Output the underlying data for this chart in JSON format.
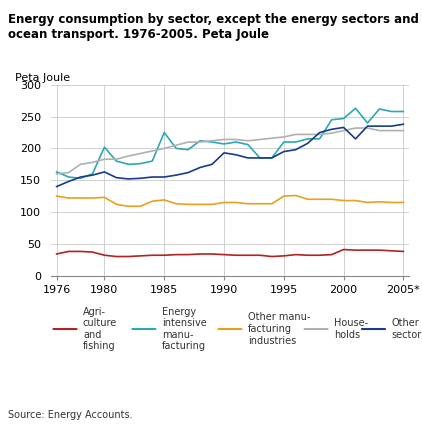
{
  "title": "Energy consumption by sector, except the energy sectors and\nocean transport. 1976-2005. Peta Joule",
  "ylabel": "Peta Joule",
  "source": "Source: Energy Accounts.",
  "xlim": [
    1976,
    2005
  ],
  "ylim": [
    0,
    300
  ],
  "yticks": [
    0,
    50,
    100,
    150,
    200,
    250,
    300
  ],
  "xticks": [
    1976,
    1980,
    1985,
    1990,
    1995,
    2000,
    "2005*"
  ],
  "xtick_vals": [
    1976,
    1980,
    1985,
    1990,
    1995,
    2000,
    2005
  ],
  "years": [
    1976,
    1977,
    1978,
    1979,
    1980,
    1981,
    1982,
    1983,
    1984,
    1985,
    1986,
    1987,
    1988,
    1989,
    1990,
    1991,
    1992,
    1993,
    1994,
    1995,
    1996,
    1997,
    1998,
    1999,
    2000,
    2001,
    2002,
    2003,
    2004,
    2005
  ],
  "series": {
    "Agriculture and fishing": {
      "color": "#b22222",
      "values": [
        34,
        38,
        38,
        37,
        32,
        30,
        30,
        31,
        32,
        32,
        33,
        33,
        34,
        34,
        33,
        32,
        32,
        32,
        30,
        31,
        33,
        32,
        32,
        33,
        41,
        40,
        40,
        40,
        39,
        38
      ]
    },
    "Energy intensive manufacturing": {
      "color": "#2ca8b0",
      "values": [
        163,
        155,
        153,
        160,
        202,
        180,
        175,
        176,
        180,
        225,
        200,
        198,
        212,
        210,
        207,
        210,
        206,
        185,
        185,
        210,
        210,
        215,
        215,
        245,
        247,
        263,
        240,
        262,
        258,
        258
      ]
    },
    "Other manufacturing industries": {
      "color": "#e8a020",
      "values": [
        125,
        122,
        122,
        122,
        123,
        112,
        109,
        109,
        117,
        119,
        113,
        112,
        112,
        112,
        115,
        115,
        113,
        113,
        113,
        125,
        126,
        120,
        120,
        120,
        118,
        118,
        115,
        116,
        115,
        115
      ]
    },
    "Households": {
      "color": "#b0b0b0",
      "values": [
        160,
        162,
        175,
        178,
        183,
        183,
        188,
        192,
        196,
        200,
        205,
        210,
        210,
        212,
        214,
        214,
        212,
        214,
        216,
        218,
        222,
        222,
        222,
        224,
        228,
        232,
        232,
        228,
        228,
        228
      ]
    },
    "Other sectors": {
      "color": "#1a3a8c",
      "values": [
        140,
        148,
        155,
        158,
        163,
        154,
        152,
        153,
        155,
        155,
        158,
        162,
        170,
        175,
        193,
        190,
        185,
        185,
        185,
        195,
        198,
        208,
        225,
        230,
        233,
        215,
        235,
        235,
        235,
        238
      ]
    }
  },
  "legend": [
    {
      "label": "Agri-\nculture\nand\nfishing",
      "color": "#b22222"
    },
    {
      "label": "Energy\nintensive\nmanu-\nfacturing",
      "color": "#2ca8b0"
    },
    {
      "label": "Other manu-\nfacturing\nindustries",
      "color": "#e8a020"
    },
    {
      "label": "House-\nholds",
      "color": "#b0b0b0"
    },
    {
      "label": "Other\nsectors",
      "color": "#1a3a8c"
    }
  ],
  "background_color": "#ffffff",
  "grid_color": "#d0d0d0"
}
